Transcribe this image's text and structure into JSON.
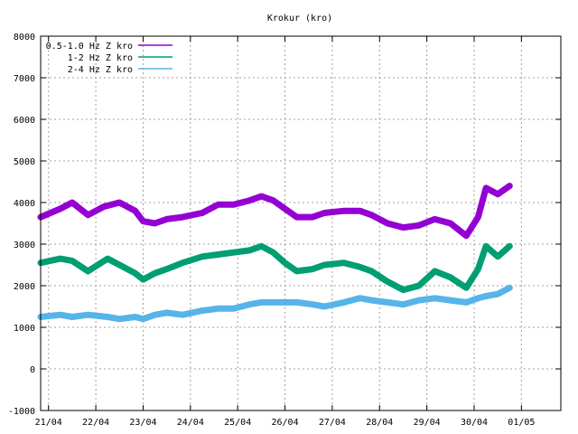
{
  "chart_data": {
    "type": "line",
    "title": "Krokur (kro)",
    "xlabel": "",
    "ylabel": "",
    "ylim": [
      -1000,
      8000
    ],
    "yticks": [
      -1000,
      0,
      1000,
      2000,
      3000,
      4000,
      5000,
      6000,
      7000,
      8000
    ],
    "xlim": [
      "2025-04-20T20:00",
      "2025-05-01T20:00"
    ],
    "xticks": [
      {
        "label": "21/04",
        "t": "2025-04-21T00:00"
      },
      {
        "label": "22/04",
        "t": "2025-04-22T00:00"
      },
      {
        "label": "23/04",
        "t": "2025-04-23T00:00"
      },
      {
        "label": "24/04",
        "t": "2025-04-24T00:00"
      },
      {
        "label": "25/04",
        "t": "2025-04-25T00:00"
      },
      {
        "label": "26/04",
        "t": "2025-04-26T00:00"
      },
      {
        "label": "27/04",
        "t": "2025-04-27T00:00"
      },
      {
        "label": "28/04",
        "t": "2025-04-28T00:00"
      },
      {
        "label": "29/04",
        "t": "2025-04-29T00:00"
      },
      {
        "label": "30/04",
        "t": "2025-04-30T00:00"
      },
      {
        "label": "01/05",
        "t": "2025-05-01T00:00"
      }
    ],
    "grid": true,
    "legend_position": "top-left",
    "series": [
      {
        "name": "0.5-1.0 Hz Z kro",
        "color": "#9400d3",
        "points": [
          [
            "2025-04-20T20:00",
            3650
          ],
          [
            "2025-04-21T06:00",
            3850
          ],
          [
            "2025-04-21T12:00",
            4000
          ],
          [
            "2025-04-21T20:00",
            3700
          ],
          [
            "2025-04-22T04:00",
            3900
          ],
          [
            "2025-04-22T12:00",
            4000
          ],
          [
            "2025-04-22T20:00",
            3800
          ],
          [
            "2025-04-23T00:00",
            3550
          ],
          [
            "2025-04-23T06:00",
            3500
          ],
          [
            "2025-04-23T12:00",
            3600
          ],
          [
            "2025-04-23T20:00",
            3650
          ],
          [
            "2025-04-24T06:00",
            3750
          ],
          [
            "2025-04-24T14:00",
            3950
          ],
          [
            "2025-04-24T22:00",
            3950
          ],
          [
            "2025-04-25T06:00",
            4050
          ],
          [
            "2025-04-25T12:00",
            4150
          ],
          [
            "2025-04-25T18:00",
            4050
          ],
          [
            "2025-04-26T00:00",
            3850
          ],
          [
            "2025-04-26T06:00",
            3650
          ],
          [
            "2025-04-26T14:00",
            3650
          ],
          [
            "2025-04-26T20:00",
            3750
          ],
          [
            "2025-04-27T06:00",
            3800
          ],
          [
            "2025-04-27T14:00",
            3800
          ],
          [
            "2025-04-27T20:00",
            3700
          ],
          [
            "2025-04-28T04:00",
            3500
          ],
          [
            "2025-04-28T12:00",
            3400
          ],
          [
            "2025-04-28T20:00",
            3450
          ],
          [
            "2025-04-29T04:00",
            3600
          ],
          [
            "2025-04-29T12:00",
            3500
          ],
          [
            "2025-04-29T20:00",
            3200
          ],
          [
            "2025-04-30T02:00",
            3650
          ],
          [
            "2025-04-30T06:00",
            4350
          ],
          [
            "2025-04-30T12:00",
            4200
          ],
          [
            "2025-04-30T18:00",
            4400
          ]
        ]
      },
      {
        "name": "1-2 Hz Z kro",
        "color": "#009e73",
        "points": [
          [
            "2025-04-20T20:00",
            2550
          ],
          [
            "2025-04-21T06:00",
            2650
          ],
          [
            "2025-04-21T12:00",
            2600
          ],
          [
            "2025-04-21T20:00",
            2350
          ],
          [
            "2025-04-22T06:00",
            2650
          ],
          [
            "2025-04-22T12:00",
            2500
          ],
          [
            "2025-04-22T20:00",
            2300
          ],
          [
            "2025-04-23T00:00",
            2150
          ],
          [
            "2025-04-23T06:00",
            2300
          ],
          [
            "2025-04-23T12:00",
            2400
          ],
          [
            "2025-04-23T20:00",
            2550
          ],
          [
            "2025-04-24T06:00",
            2700
          ],
          [
            "2025-04-24T14:00",
            2750
          ],
          [
            "2025-04-24T22:00",
            2800
          ],
          [
            "2025-04-25T06:00",
            2850
          ],
          [
            "2025-04-25T12:00",
            2950
          ],
          [
            "2025-04-25T18:00",
            2800
          ],
          [
            "2025-04-26T00:00",
            2550
          ],
          [
            "2025-04-26T06:00",
            2350
          ],
          [
            "2025-04-26T14:00",
            2400
          ],
          [
            "2025-04-26T20:00",
            2500
          ],
          [
            "2025-04-27T06:00",
            2550
          ],
          [
            "2025-04-27T14:00",
            2450
          ],
          [
            "2025-04-27T20:00",
            2350
          ],
          [
            "2025-04-28T04:00",
            2100
          ],
          [
            "2025-04-28T12:00",
            1900
          ],
          [
            "2025-04-28T20:00",
            2000
          ],
          [
            "2025-04-29T04:00",
            2350
          ],
          [
            "2025-04-29T12:00",
            2200
          ],
          [
            "2025-04-29T20:00",
            1950
          ],
          [
            "2025-04-30T02:00",
            2400
          ],
          [
            "2025-04-30T06:00",
            2950
          ],
          [
            "2025-04-30T12:00",
            2700
          ],
          [
            "2025-04-30T18:00",
            2950
          ]
        ]
      },
      {
        "name": "2-4 Hz Z kro",
        "color": "#56b4e9",
        "points": [
          [
            "2025-04-20T20:00",
            1250
          ],
          [
            "2025-04-21T06:00",
            1300
          ],
          [
            "2025-04-21T12:00",
            1250
          ],
          [
            "2025-04-21T20:00",
            1300
          ],
          [
            "2025-04-22T06:00",
            1250
          ],
          [
            "2025-04-22T12:00",
            1200
          ],
          [
            "2025-04-22T20:00",
            1250
          ],
          [
            "2025-04-23T00:00",
            1200
          ],
          [
            "2025-04-23T06:00",
            1300
          ],
          [
            "2025-04-23T12:00",
            1350
          ],
          [
            "2025-04-23T20:00",
            1300
          ],
          [
            "2025-04-24T06:00",
            1400
          ],
          [
            "2025-04-24T14:00",
            1450
          ],
          [
            "2025-04-24T22:00",
            1450
          ],
          [
            "2025-04-25T06:00",
            1550
          ],
          [
            "2025-04-25T12:00",
            1600
          ],
          [
            "2025-04-25T18:00",
            1600
          ],
          [
            "2025-04-26T00:00",
            1600
          ],
          [
            "2025-04-26T06:00",
            1600
          ],
          [
            "2025-04-26T14:00",
            1550
          ],
          [
            "2025-04-26T20:00",
            1500
          ],
          [
            "2025-04-27T06:00",
            1600
          ],
          [
            "2025-04-27T14:00",
            1700
          ],
          [
            "2025-04-27T20:00",
            1650
          ],
          [
            "2025-04-28T04:00",
            1600
          ],
          [
            "2025-04-28T12:00",
            1550
          ],
          [
            "2025-04-28T20:00",
            1650
          ],
          [
            "2025-04-29T04:00",
            1700
          ],
          [
            "2025-04-29T12:00",
            1650
          ],
          [
            "2025-04-29T20:00",
            1600
          ],
          [
            "2025-04-30T02:00",
            1700
          ],
          [
            "2025-04-30T06:00",
            1750
          ],
          [
            "2025-04-30T12:00",
            1800
          ],
          [
            "2025-04-30T18:00",
            1950
          ]
        ]
      }
    ]
  }
}
